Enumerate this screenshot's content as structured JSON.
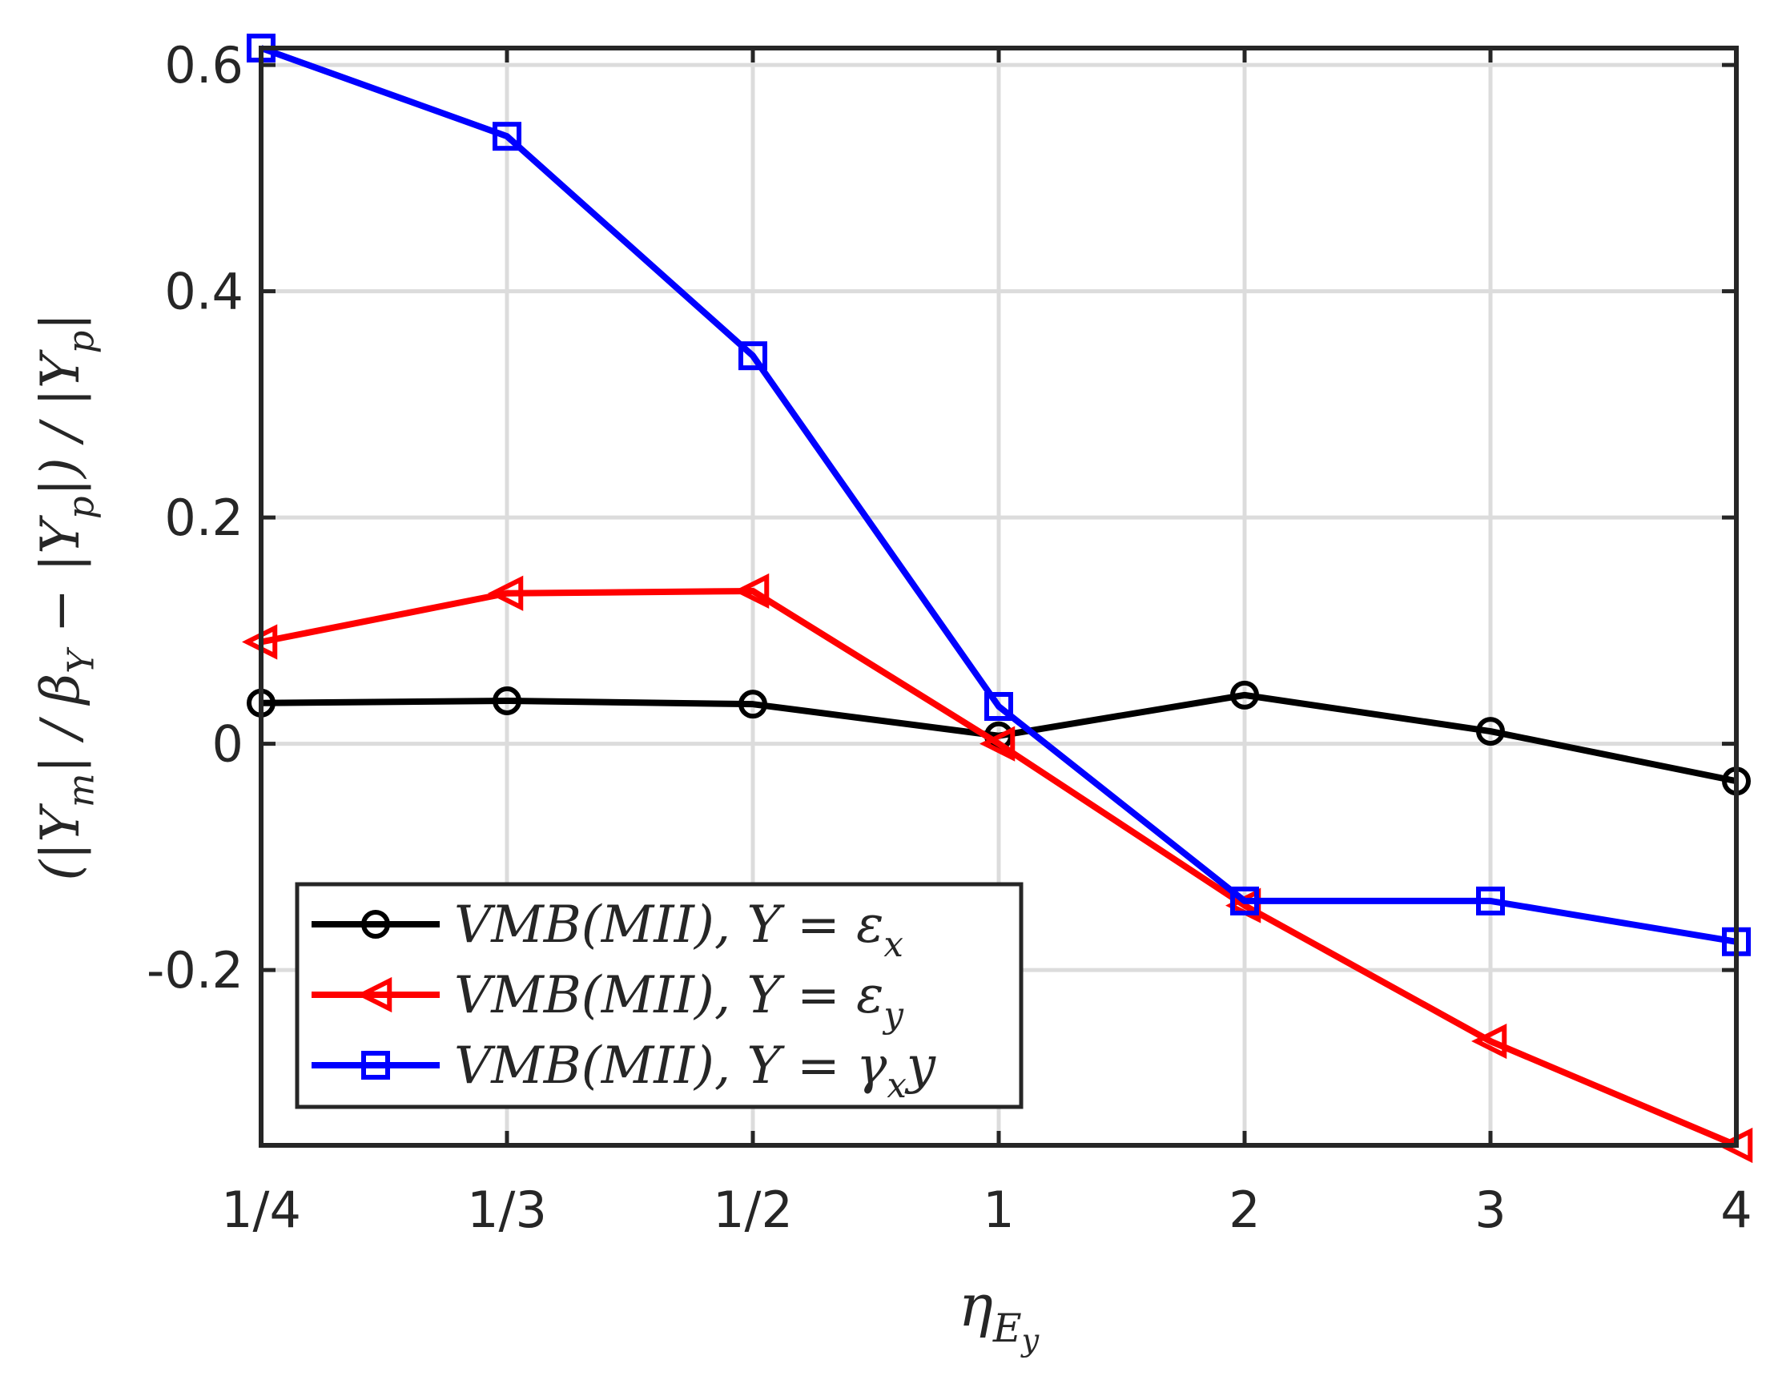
{
  "chart_data": {
    "type": "line",
    "categories": [
      "1/4",
      "1/3",
      "1/2",
      "1",
      "2",
      "3",
      "4"
    ],
    "xlabel": "η_{E_y}",
    "ylabel": "(|Y_m| / β_Y − |Y_p|) / |Y_p|",
    "yticks": [
      "-0.2",
      "0",
      "0.2",
      "0.4",
      "0.6"
    ],
    "ylim": [
      -0.355,
      0.615
    ],
    "grid": true,
    "legend_position": "bottom-left",
    "series": [
      {
        "name": "VMB(MII), Y = ε_x",
        "marker": "circle",
        "color": "#000000",
        "values": [
          0.036,
          0.038,
          0.035,
          0.007,
          0.043,
          0.011,
          -0.033
        ]
      },
      {
        "name": "VMB(MII), Y = ε_y",
        "marker": "triangle-left",
        "color": "#ff0000",
        "values": [
          0.09,
          0.133,
          0.135,
          0.0,
          -0.143,
          -0.263,
          -0.355
        ]
      },
      {
        "name": "VMB(MII), Y = γ_xy",
        "marker": "square",
        "color": "#0000ff",
        "values": [
          0.615,
          0.537,
          0.343,
          0.033,
          -0.139,
          -0.139,
          -0.175
        ]
      }
    ]
  }
}
